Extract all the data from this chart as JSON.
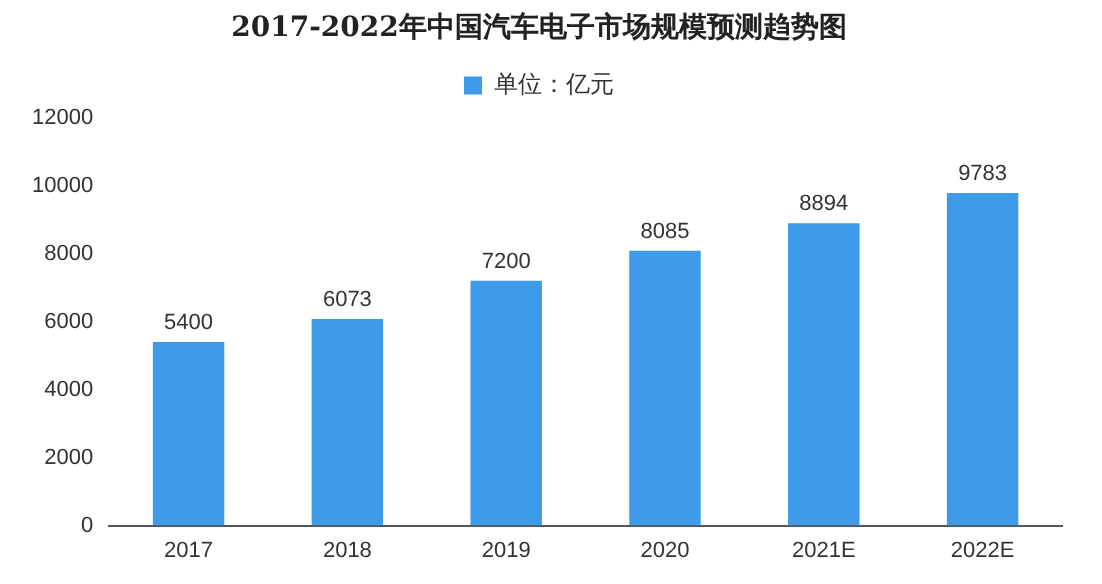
{
  "chart_data": {
    "type": "bar",
    "title": "2017-2022年中国汽车电子市场规模预测趋势图",
    "categories": [
      "2017",
      "2018",
      "2019",
      "2020",
      "2021E",
      "2022E"
    ],
    "series": [
      {
        "name": "单位：亿元",
        "color": "#3d9be9",
        "values": [
          5400,
          6073,
          7200,
          8085,
          8894,
          9783
        ]
      }
    ],
    "ylim": [
      0,
      12000
    ],
    "yticks": [
      0,
      2000,
      4000,
      6000,
      8000,
      10000,
      12000
    ],
    "grid": false,
    "legend": "top",
    "data_labels": true
  }
}
